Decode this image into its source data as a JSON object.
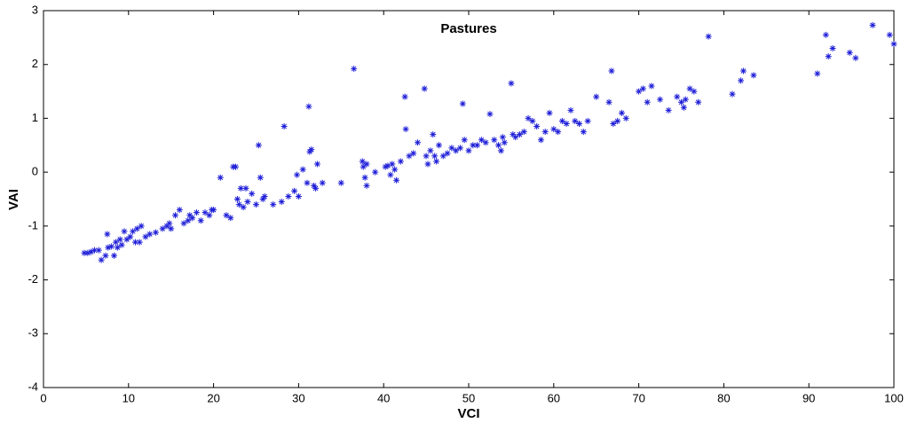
{
  "chart_data": {
    "type": "scatter",
    "title": "Pastures",
    "x_label": "VCI",
    "y_label": "VAI",
    "xlim": [
      0,
      100
    ],
    "xticks": [
      0,
      10,
      20,
      30,
      40,
      50,
      60,
      70,
      80,
      90,
      100
    ],
    "ylim": [
      -4,
      3
    ],
    "yticks": [
      -4,
      -3,
      -2,
      -1,
      0,
      1,
      2,
      3
    ],
    "series": [
      {
        "color": "#1f1fd8",
        "x": [
          4.8,
          5.2,
          5.6,
          6,
          6.5,
          6.8,
          7.3,
          7.5,
          7.6,
          8,
          8.3,
          8.5,
          8.7,
          9,
          9.2,
          9.5,
          9.8,
          10.2,
          10.5,
          10.8,
          11,
          11.3,
          11.5,
          12,
          12.5,
          13.2,
          14,
          14.5,
          14.8,
          15,
          15.5,
          16,
          16.5,
          17,
          17.2,
          17.5,
          18,
          18.5,
          19,
          19.5,
          19.8,
          20,
          20.8,
          21.5,
          22,
          22.3,
          22.6,
          22.8,
          23,
          23.2,
          23.5,
          23.8,
          24,
          24.5,
          25,
          25.3,
          25.5,
          25.8,
          26,
          27,
          28,
          28.3,
          28.8,
          29.5,
          29.8,
          30,
          30.5,
          31,
          31.2,
          31.3,
          31.5,
          31.8,
          32,
          32.2,
          32.8,
          35,
          36.5,
          37.5,
          37.6,
          37.8,
          38,
          38,
          39,
          40.2,
          40.5,
          40.8,
          41,
          41.3,
          41.5,
          42,
          42.5,
          42.6,
          43,
          43.5,
          44,
          44.8,
          45,
          45.2,
          45.5,
          45.8,
          46,
          46.2,
          46.5,
          47,
          47.5,
          48,
          48.5,
          49,
          49.3,
          49.5,
          50,
          50.5,
          51,
          51.5,
          52,
          52.5,
          53,
          53.5,
          53.8,
          54,
          54.2,
          55,
          55.2,
          55.5,
          56,
          56.5,
          57,
          57.5,
          58,
          58.5,
          59,
          59.5,
          60,
          60.5,
          61,
          61.5,
          62,
          62.5,
          63,
          63.5,
          64,
          65,
          66.5,
          66.8,
          67,
          67.5,
          68,
          68.5,
          70,
          70.5,
          71,
          71.5,
          72.5,
          73.5,
          74.5,
          75,
          75.3,
          75.5,
          76,
          76.5,
          77,
          78.2,
          81,
          82,
          82.3,
          83.5,
          91,
          92,
          92.3,
          92.8,
          94.8,
          95.5,
          97.5,
          99.5,
          100
        ],
        "values": [
          -1.5,
          -1.5,
          -1.48,
          -1.45,
          -1.45,
          -1.63,
          -1.55,
          -1.15,
          -1.4,
          -1.38,
          -1.55,
          -1.3,
          -1.4,
          -1.25,
          -1.35,
          -1.1,
          -1.25,
          -1.2,
          -1.1,
          -1.3,
          -1.05,
          -1.3,
          -1,
          -1.2,
          -1.15,
          -1.12,
          -1.05,
          -1,
          -0.95,
          -1.05,
          -0.8,
          -0.7,
          -0.95,
          -0.9,
          -0.8,
          -0.85,
          -0.75,
          -0.9,
          -0.75,
          -0.8,
          -0.7,
          -0.7,
          -0.1,
          -0.8,
          -0.85,
          0.1,
          0.1,
          -0.5,
          -0.6,
          -0.3,
          -0.65,
          -0.3,
          -0.55,
          -0.4,
          -0.6,
          0.5,
          -0.1,
          -0.5,
          -0.45,
          -0.6,
          -0.55,
          0.85,
          -0.45,
          -0.35,
          -0.05,
          -0.45,
          0.05,
          -0.2,
          1.22,
          0.38,
          0.42,
          -0.25,
          -0.3,
          0.15,
          -0.2,
          -0.2,
          1.92,
          0.2,
          0.1,
          -0.1,
          -0.25,
          0.15,
          0,
          0.1,
          0.12,
          -0.05,
          0.15,
          0.05,
          -0.15,
          0.2,
          1.4,
          0.8,
          0.3,
          0.35,
          0.55,
          1.55,
          0.3,
          0.15,
          0.4,
          0.7,
          0.3,
          0.2,
          0.5,
          0.3,
          0.35,
          0.45,
          0.4,
          0.45,
          1.27,
          0.6,
          0.4,
          0.5,
          0.5,
          0.6,
          0.55,
          1.08,
          0.6,
          0.5,
          0.4,
          0.65,
          0.55,
          1.65,
          0.7,
          0.65,
          0.7,
          0.75,
          1,
          0.95,
          0.85,
          0.6,
          0.75,
          1.1,
          0.8,
          0.75,
          0.95,
          0.9,
          1.15,
          0.95,
          0.9,
          0.75,
          0.95,
          1.4,
          1.3,
          1.88,
          0.9,
          0.95,
          1.1,
          1,
          1.5,
          1.55,
          1.3,
          1.6,
          1.35,
          1.15,
          1.4,
          1.3,
          1.2,
          1.35,
          1.55,
          1.5,
          1.3,
          2.52,
          1.45,
          1.7,
          1.88,
          1.8,
          1.83,
          2.55,
          2.15,
          2.3,
          2.22,
          2.12,
          2.73,
          2.55,
          2.38
        ]
      }
    ]
  }
}
